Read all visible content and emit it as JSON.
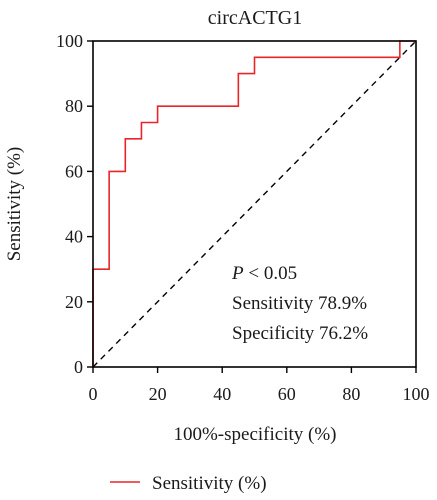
{
  "chart_data": {
    "type": "line",
    "title": "circACTG1",
    "xlabel": "100%-specificity (%)",
    "ylabel": "Sensitivity (%)",
    "xlim": [
      0,
      100
    ],
    "ylim": [
      0,
      100
    ],
    "xticks": [
      0,
      20,
      40,
      60,
      80,
      100
    ],
    "yticks": [
      0,
      20,
      40,
      60,
      80,
      100
    ],
    "grid": false,
    "legend_position": "bottom-left",
    "series": [
      {
        "name": "Sensitivity (%)",
        "color": "#e8262a",
        "x": [
          0,
          0,
          5,
          5,
          10,
          10,
          15,
          15,
          20,
          20,
          45,
          45,
          50,
          50,
          95,
          95,
          100
        ],
        "y": [
          0,
          30,
          30,
          60,
          60,
          70,
          70,
          75,
          75,
          80,
          80,
          90,
          90,
          95,
          95,
          100,
          100
        ]
      }
    ],
    "reference_line": {
      "x": [
        0,
        100
      ],
      "y": [
        0,
        100
      ],
      "style": "dashed",
      "color": "#000000"
    },
    "annotations": {
      "p_italic": "P",
      "p_rest": " < 0.05",
      "sensitivity": "Sensitivity 78.9%",
      "specificity": "Specificity 76.2%"
    }
  }
}
